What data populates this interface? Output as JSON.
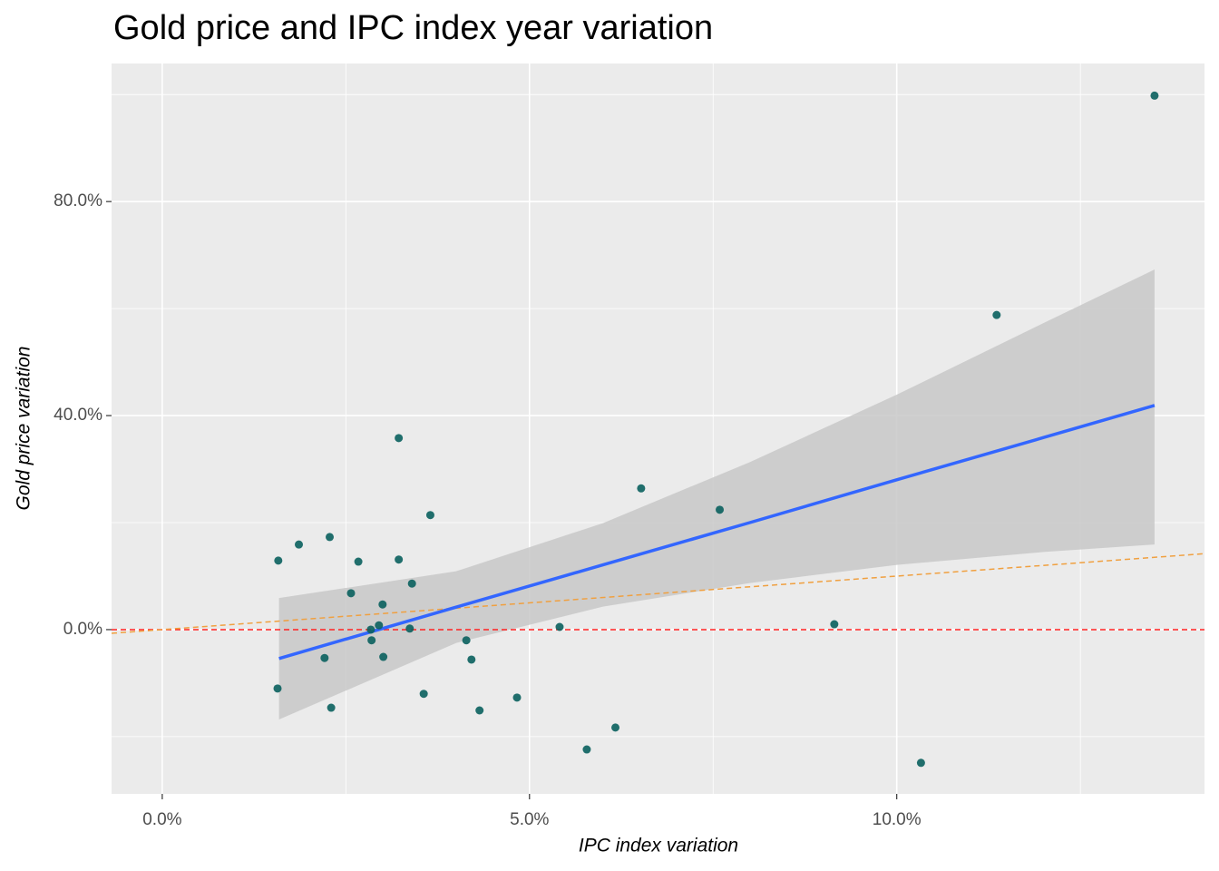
{
  "chart_data": {
    "type": "scatter",
    "title": "Gold price and IPC index year variation",
    "x_label": "IPC index variation",
    "y_label": "Gold price variation",
    "xlim": [
      -0.69,
      14.19
    ],
    "ylim": [
      -30.7,
      105.8
    ],
    "xticks": [
      {
        "value": 0,
        "label": "0.0%"
      },
      {
        "value": 5,
        "label": "5.0%"
      },
      {
        "value": 10,
        "label": "10.0%"
      }
    ],
    "yticks": [
      {
        "value": 0,
        "label": "0.0%"
      },
      {
        "value": 40,
        "label": "40.0%"
      },
      {
        "value": 80,
        "label": "80.0%"
      }
    ],
    "grid": true,
    "color": "#0a605e",
    "x": [
      13.51,
      11.36,
      6.52,
      7.59,
      3.22,
      3.65,
      1.58,
      1.86,
      2.28,
      2.67,
      3.22,
      3.4,
      2.57,
      3.0,
      2.95,
      2.84,
      3.37,
      5.41,
      9.15,
      2.85,
      4.14,
      2.21,
      3.01,
      4.21,
      1.57,
      3.56,
      4.83,
      2.3,
      4.32,
      6.17,
      5.78,
      10.33
    ],
    "values": [
      99.8,
      58.8,
      26.4,
      22.4,
      35.8,
      21.4,
      12.9,
      15.9,
      17.3,
      12.7,
      13.1,
      8.6,
      6.8,
      4.7,
      0.8,
      0.0,
      0.2,
      0.5,
      1.0,
      -2.0,
      -2.0,
      -5.3,
      -5.1,
      -5.6,
      -11.0,
      -12.0,
      -12.7,
      -14.6,
      -15.1,
      -18.3,
      -22.4,
      -24.9
    ],
    "smooth": {
      "color": "#3366ff",
      "band_color": "#c8c8c8",
      "x": [
        1.59,
        4,
        6,
        8,
        10,
        12,
        13.51
      ],
      "fit": [
        -5.4,
        4.2,
        12.1,
        20.0,
        28.0,
        35.9,
        41.9
      ],
      "lower": [
        -16.8,
        -2.5,
        4.3,
        8.7,
        12.1,
        14.5,
        15.9
      ],
      "upper": [
        5.9,
        10.9,
        19.9,
        31.3,
        43.9,
        57.3,
        67.3
      ]
    },
    "hline": {
      "yintercept": 0,
      "color": "#ff2020"
    },
    "abline": {
      "intercept": 0,
      "slope": 1,
      "color": "#f0a040"
    }
  }
}
